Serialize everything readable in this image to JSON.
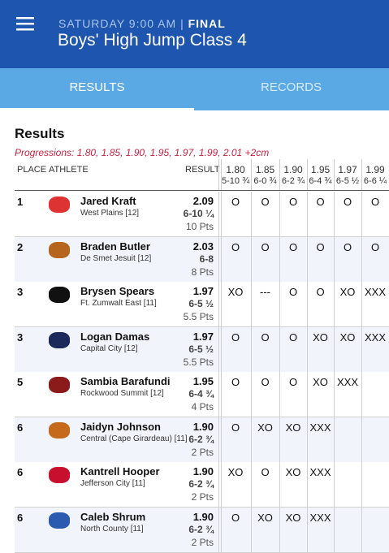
{
  "header": {
    "date": "SATURDAY 9:00 AM",
    "separator": "|",
    "status": "FINAL",
    "title": "Boys' High Jump Class 4"
  },
  "tabs": [
    "RESULTS",
    "RECORDS"
  ],
  "section": {
    "title": "Results",
    "progressions": "Progressions: 1.80, 1.85, 1.90, 1.95, 1.97, 1.99, 2.01 +2cm"
  },
  "table": {
    "columns": {
      "place": "PLACE",
      "athlete": "ATHLETE",
      "result": "RESULT"
    },
    "heights": [
      {
        "metric": "1.80",
        "imperial": "5-10 ¾"
      },
      {
        "metric": "1.85",
        "imperial": "6-0 ¾"
      },
      {
        "metric": "1.90",
        "imperial": "6-2 ¾"
      },
      {
        "metric": "1.95",
        "imperial": "6-4 ¾"
      },
      {
        "metric": "1.97",
        "imperial": "6-5 ½"
      },
      {
        "metric": "1.99",
        "imperial": "6-6 ¼"
      }
    ],
    "rows": [
      {
        "place": "1",
        "name": "Jared Kraft",
        "school": "West Plains [12]",
        "mark": "2.09",
        "imperial": "6-10 ¼",
        "points": "10 Pts",
        "attempts": [
          "O",
          "O",
          "O",
          "O",
          "O",
          "O"
        ]
      },
      {
        "place": "2",
        "name": "Braden Butler",
        "school": "De Smet Jesuit [12]",
        "mark": "2.03",
        "imperial": "6-8",
        "points": "8 Pts",
        "attempts": [
          "O",
          "O",
          "O",
          "O",
          "O",
          "O"
        ]
      },
      {
        "place": "3",
        "name": "Brysen Spears",
        "school": "Ft. Zumwalt East [11]",
        "mark": "1.97",
        "imperial": "6-5 ½",
        "points": "5.5 Pts",
        "attempts": [
          "XO",
          "---",
          "O",
          "O",
          "XO",
          "XXX"
        ]
      },
      {
        "place": "3",
        "name": "Logan Damas",
        "school": "Capital City [12]",
        "mark": "1.97",
        "imperial": "6-5 ½",
        "points": "5.5 Pts",
        "attempts": [
          "O",
          "O",
          "O",
          "XO",
          "XO",
          "XXX"
        ]
      },
      {
        "place": "5",
        "name": "Sambia Barafundi",
        "school": "Rockwood Summit [12]",
        "mark": "1.95",
        "imperial": "6-4 ¾",
        "points": "4 Pts",
        "attempts": [
          "O",
          "O",
          "O",
          "XO",
          "XXX"
        ]
      },
      {
        "place": "6",
        "name": "Jaidyn Johnson",
        "school": "Central (Cape Girardeau) [11]",
        "mark": "1.90",
        "imperial": "6-2 ¾",
        "points": "2 Pts",
        "attempts": [
          "O",
          "XO",
          "XO",
          "XXX"
        ]
      },
      {
        "place": "6",
        "name": "Kantrell Hooper",
        "school": "Jefferson City [11]",
        "mark": "1.90",
        "imperial": "6-2 ¾",
        "points": "2 Pts",
        "attempts": [
          "XO",
          "O",
          "XO",
          "XXX"
        ]
      },
      {
        "place": "6",
        "name": "Caleb Shrum",
        "school": "North County [11]",
        "mark": "1.90",
        "imperial": "6-2 ¾",
        "points": "2 Pts",
        "attempts": [
          "O",
          "XO",
          "XO",
          "XXX"
        ]
      }
    ]
  }
}
